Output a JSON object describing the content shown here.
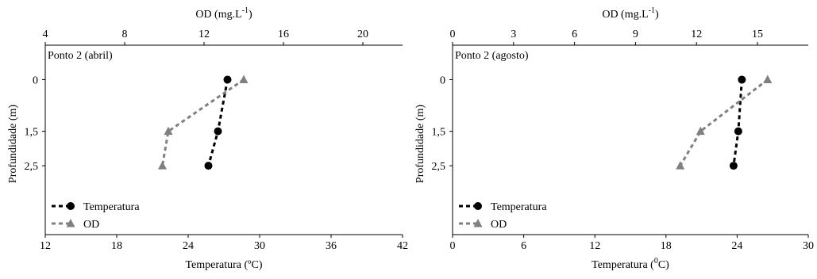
{
  "chart_data": [
    {
      "type": "line",
      "title": "Ponto 2 (abril)",
      "top_axis": {
        "label": "OD (mg.L",
        "label_sup": "-1",
        "label_end": ")",
        "ticks": [
          4,
          8,
          12,
          16,
          20
        ],
        "lim": [
          4,
          22
        ]
      },
      "bottom_axis": {
        "label": "Temperatura (ºC)",
        "ticks": [
          12,
          18,
          24,
          30,
          36,
          42
        ],
        "lim": [
          12,
          42
        ]
      },
      "y_axis": {
        "label": "Profundidade (m)",
        "ticks": [
          "0",
          "1,5",
          "2,5"
        ],
        "lim": [
          -1,
          4.5
        ],
        "inverted": true
      },
      "series": [
        {
          "name": "Temperatura",
          "axis": "bottom",
          "color": "#000000",
          "marker": "circle",
          "points": [
            [
              27.3,
              0
            ],
            [
              26.5,
              1.5
            ],
            [
              25.7,
              2.5
            ]
          ]
        },
        {
          "name": "OD",
          "axis": "top",
          "color": "#808080",
          "marker": "triangle",
          "points": [
            [
              14.0,
              0
            ],
            [
              10.2,
              1.5
            ],
            [
              9.9,
              2.5
            ]
          ]
        }
      ],
      "legend_position": "bottom-left"
    },
    {
      "type": "line",
      "title": "Ponto 2 (agosto)",
      "top_axis": {
        "label": "OD (mg.L",
        "label_sup": "-1",
        "label_end": ")",
        "ticks": [
          0,
          3,
          6,
          9,
          12,
          15
        ],
        "lim": [
          0,
          17.5
        ]
      },
      "bottom_axis": {
        "label": "Temperatura (",
        "label_sup": "0",
        "label_end": "C)",
        "ticks": [
          0,
          6,
          12,
          18,
          24,
          30
        ],
        "lim": [
          0,
          30
        ]
      },
      "y_axis": {
        "label": "Profundidade (m)",
        "ticks": [
          "0",
          "1,5",
          "2,5"
        ],
        "lim": [
          -1,
          4.5
        ],
        "inverted": true
      },
      "series": [
        {
          "name": "Temperatura",
          "axis": "bottom",
          "color": "#000000",
          "marker": "circle",
          "points": [
            [
              24.4,
              0
            ],
            [
              24.1,
              1.5
            ],
            [
              23.7,
              2.5
            ]
          ]
        },
        {
          "name": "OD",
          "axis": "top",
          "color": "#808080",
          "marker": "triangle",
          "points": [
            [
              15.5,
              0
            ],
            [
              12.2,
              1.5
            ],
            [
              11.2,
              2.5
            ]
          ]
        }
      ],
      "legend_position": "bottom-left"
    }
  ]
}
